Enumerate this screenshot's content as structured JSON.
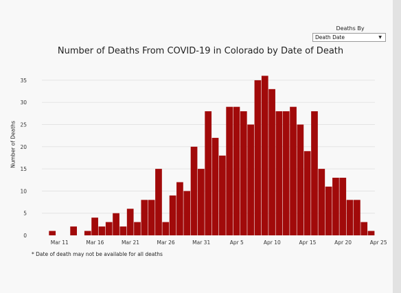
{
  "filter": {
    "label": "Deaths By",
    "selected": "Death Date"
  },
  "footnote": "* Date of death may not be available for all deaths",
  "chart_data": {
    "type": "bar",
    "title": "Number of Deaths From COVID-19 in Colorado by Date of Death",
    "xlabel": "",
    "ylabel": "Number of Deaths",
    "ylim": [
      0,
      37
    ],
    "yticks": [
      0,
      5,
      10,
      15,
      20,
      25,
      30,
      35
    ],
    "grid": true,
    "bar_color": "#a10a0a",
    "x_start": "Mar 9",
    "xtick_labels": [
      {
        "label": "Mar 11",
        "index": 2
      },
      {
        "label": "Mar 16",
        "index": 7
      },
      {
        "label": "Mar 21",
        "index": 12
      },
      {
        "label": "Mar 26",
        "index": 17
      },
      {
        "label": "Mar 31",
        "index": 22
      },
      {
        "label": "Apr 5",
        "index": 27
      },
      {
        "label": "Apr 10",
        "index": 32
      },
      {
        "label": "Apr 15",
        "index": 37
      },
      {
        "label": "Apr 20",
        "index": 42
      },
      {
        "label": "Apr 25",
        "index": 47
      }
    ],
    "values": [
      0,
      1,
      0,
      0,
      2,
      0,
      1,
      4,
      2,
      3,
      5,
      2,
      6,
      3,
      8,
      8,
      15,
      3,
      9,
      12,
      10,
      20,
      15,
      28,
      22,
      18,
      29,
      29,
      28,
      25,
      35,
      36,
      33,
      28,
      28,
      29,
      25,
      19,
      28,
      15,
      11,
      13,
      13,
      8,
      8,
      3,
      1
    ]
  }
}
